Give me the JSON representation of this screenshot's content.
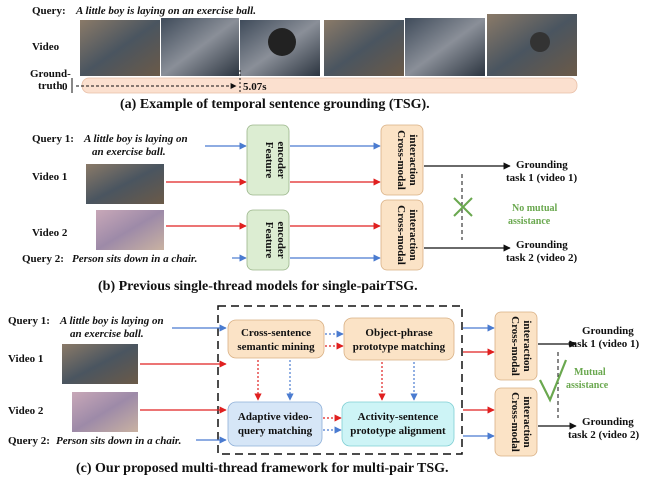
{
  "panel_a": {
    "query_label": "Query:",
    "query_text": "A little boy is laying on an exercise ball.",
    "video_label": "Video",
    "gt_label_1": "Ground-",
    "gt_label_2": "truth",
    "gt_start": "0",
    "gt_end": "5.07s",
    "caption": "(a) Example of temporal sentence grounding (TSG)."
  },
  "panel_b": {
    "query1_label": "Query 1:",
    "query1_line1": "A little boy is laying on",
    "query1_line2": "an exercise ball.",
    "video1_label": "Video 1",
    "video2_label": "Video 2",
    "query2_label": "Query 2:",
    "query2_text": "Person sits down in a chair.",
    "feature_encoder_line1": "Feature",
    "feature_encoder_line2": "encoder",
    "cross_modal_line1": "Cross-modal",
    "cross_modal_line2": "interaction",
    "out1_line1": "Grounding",
    "out1_line2": "task 1 (video 1)",
    "out2_line1": "Grounding",
    "out2_line2": "task 2 (video 2)",
    "no_assist_line1": "No mutual",
    "no_assist_line2": "assistance",
    "caption": "(b) Previous single-thread models for single-pairTSG."
  },
  "panel_c": {
    "query1_label": "Query 1:",
    "query1_line1": "A little boy is laying on",
    "query1_line2": "an exercise ball.",
    "video1_label": "Video 1",
    "video2_label": "Video 2",
    "query2_label": "Query 2:",
    "query2_text": "Person sits down in a chair.",
    "cs_mining_line1": "Cross-sentence",
    "cs_mining_line2": "semantic mining",
    "op_proto_line1": "Object-phrase",
    "op_proto_line2": "prototype matching",
    "avq_line1": "Adaptive video-",
    "avq_line2": "query matching",
    "as_proto_line1": "Activity-sentence",
    "as_proto_line2": "prototype alignment",
    "cross_modal_line1": "Cross-modal",
    "cross_modal_line2": "interaction",
    "out1_line1": "Grounding",
    "out1_line2": "task 1 (video 1)",
    "out2_line1": "Grounding",
    "out2_line2": "task 2 (video 2)",
    "assist_line1": "Mutual",
    "assist_line2": "assistance",
    "caption": "(c) Our proposed multi-thread framework for multi-pair TSG."
  },
  "colors": {
    "blue_arrow": "#4a7bd0",
    "red_arrow": "#e02020",
    "green_box": "#dcedd2",
    "orange_box": "#fbe3c6",
    "blue_box": "#d6e6f7",
    "cyan_box": "#cdf4f6",
    "gt_bar": "#fbe0cf",
    "check_green": "#6aa84f"
  }
}
